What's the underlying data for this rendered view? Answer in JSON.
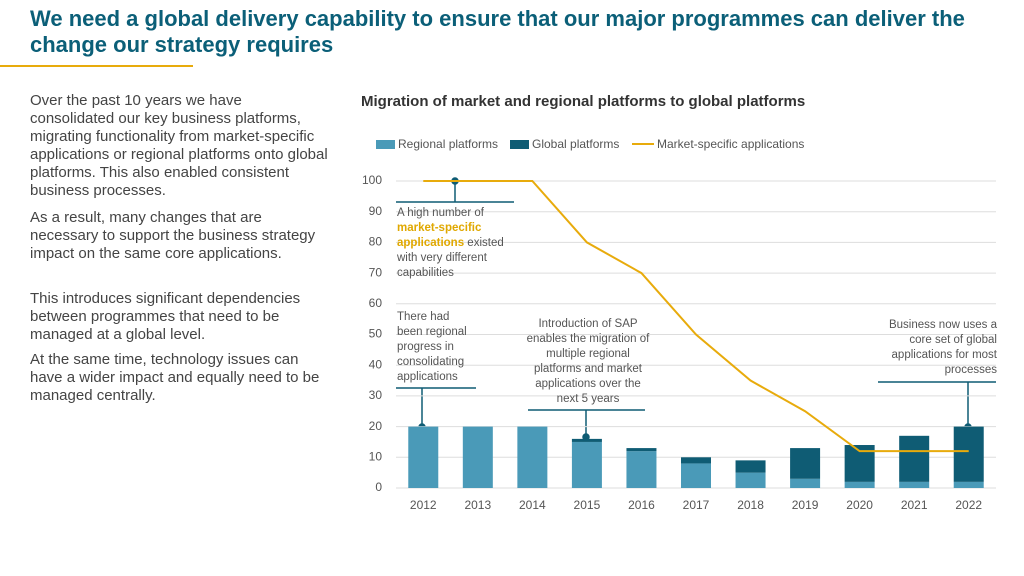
{
  "header": {
    "title": "We need a global delivery capability to ensure that our major programmes can deliver the change our strategy requires"
  },
  "body": {
    "paragraphs": [
      "Over the past 10 years we have consolidated our key business platforms, migrating functionality from market-specific applications or regional platforms onto global platforms. This also enabled consistent business processes.",
      "As a result, many changes that are necessary to support the business strategy impact on the same core applications.",
      "This introduces significant dependencies between programmes that need to be managed at a global level.",
      "At the same time, technology issues can have a wider impact and equally need to be managed centrally."
    ]
  },
  "chart_data": {
    "type": "bar",
    "title": "Migration of market and regional platforms to global platforms",
    "categories": [
      "2012",
      "2013",
      "2014",
      "2015",
      "2016",
      "2017",
      "2018",
      "2019",
      "2020",
      "2021",
      "2022"
    ],
    "series": [
      {
        "name": "Regional platforms",
        "color": "#4a9ab8",
        "values": [
          20,
          20,
          20,
          15,
          12,
          8,
          5,
          3,
          2,
          2,
          2
        ]
      },
      {
        "name": "Global platforms",
        "color": "#0f5c74",
        "values": [
          0,
          0,
          0,
          1,
          1,
          2,
          4,
          10,
          12,
          15,
          18
        ]
      },
      {
        "name": "Market-specific applications",
        "color": "#e8ab0c",
        "type": "line",
        "values": [
          100,
          100,
          100,
          80,
          70,
          50,
          35,
          25,
          12,
          12,
          12
        ]
      }
    ],
    "ylim": [
      0,
      100
    ],
    "yticks": [
      0,
      10,
      20,
      30,
      40,
      50,
      60,
      70,
      80,
      90,
      100
    ],
    "grid": true,
    "annotations": [
      [
        "A high number of ",
        "market-specific applications",
        " existed with very different capabilities"
      ],
      [
        "There had been regional progress in consolidating applications"
      ],
      [
        "Introduction of SAP enables the migration of multiple regional platforms and market applications over the next 5 years"
      ],
      [
        "Business now uses a core set of global applications for most processes"
      ]
    ]
  }
}
